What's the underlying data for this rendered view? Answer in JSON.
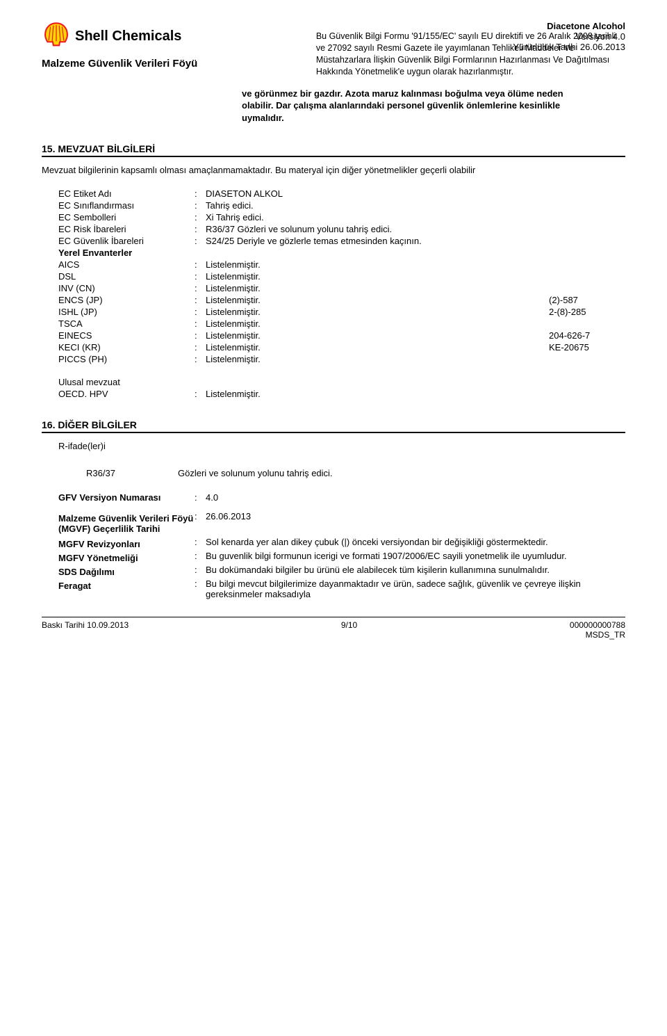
{
  "header": {
    "brand": "Shell Chemicals",
    "product_name": "Diacetone Alcohol",
    "version_label": "Versiyon 4.0",
    "effective_date": "Yürürlülük Tarihi 26.06.2013",
    "doc_title": "Malzeme Güvenlik Verileri Föyü",
    "description": "Bu Güvenlik Bilgi Formu '91/155/EC' sayılı EU direktifi ve 26 Aralık 2008 tarihli ve 27092 sayılı Resmi Gazete ile yayımlanan Tehlikeli Maddeler Ve Müstahzarlara İlişkin Güvenlik Bilgi Formlarının Hazırlanması Ve Dağıtılması Hakkında Yönetmelik'e uygun olarak hazırlanmıştır."
  },
  "bold_block": "ve görünmez bir gazdır.  Azota maruz kalınması boğulma veya ölüme neden olabilir. Dar çalışma alanlarındaki personel güvenlik önlemlerine kesinlikle uymalıdır.",
  "section15": {
    "heading": "15. MEVZUAT BİLGİLERİ",
    "intro": "Mevzuat bilgilerinin kapsamlı olması amaçlanmamaktadır. Bu materyal için diğer yönetmelikler geçerli olabilir",
    "rows": [
      {
        "key": "EC Etiket Adı",
        "val": "DIASETON ALKOL",
        "indent": true
      },
      {
        "key": "EC Sınıflandırması",
        "val": "Tahriş edici.",
        "indent": true
      },
      {
        "key": "EC Sembolleri",
        "val": "Xi Tahriş edici.",
        "indent": true
      },
      {
        "key": "EC Risk İbareleri",
        "val": "R36/37 Gözleri ve solunum yolunu tahriş edici.",
        "indent": true
      },
      {
        "key": "EC Güvenlik İbareleri",
        "val": "S24/25 Deriyle ve gözlerle temas etmesinden kaçının.",
        "indent": true
      }
    ],
    "subheading": "Yerel Envanterler",
    "inventory": [
      {
        "key": "AICS",
        "val": "Listelenmiştir.",
        "extra": ""
      },
      {
        "key": "DSL",
        "val": "Listelenmiştir.",
        "extra": ""
      },
      {
        "key": "INV (CN)",
        "val": "Listelenmiştir.",
        "extra": ""
      },
      {
        "key": "ENCS (JP)",
        "val": "Listelenmiştir.",
        "extra": "(2)-587"
      },
      {
        "key": "ISHL (JP)",
        "val": "Listelenmiştir.",
        "extra": "2-(8)-285"
      },
      {
        "key": "TSCA",
        "val": "Listelenmiştir.",
        "extra": ""
      },
      {
        "key": "EINECS",
        "val": "Listelenmiştir.",
        "extra": "204-626-7"
      },
      {
        "key": "KECI (KR)",
        "val": "Listelenmiştir.",
        "extra": "KE-20675"
      },
      {
        "key": "PICCS (PH)",
        "val": "Listelenmiştir.",
        "extra": ""
      }
    ],
    "national_heading": "Ulusal mevzuat",
    "national": [
      {
        "key": "OECD. HPV",
        "val": "Listelenmiştir."
      }
    ]
  },
  "section16": {
    "heading": "16. DİĞER BİLGİLER",
    "r_label": "R-ifade(ler)i",
    "r_rows": [
      {
        "code": "R36/37",
        "text": "Gözleri ve solunum yolunu tahriş edici."
      }
    ],
    "rows": [
      {
        "key": "GFV Versiyon Numarası",
        "val": "4.0",
        "keybold": true
      },
      {
        "key": "Malzeme Güvenlik Verileri Föyü (MGVF) Geçerlilik Tarihi",
        "val": "26.06.2013",
        "keybold": true
      },
      {
        "key": "MGFV Revizyonları",
        "val": "Sol kenarda yer alan dikey çubuk (|) önceki versiyondan bir değişikliği göstermektedir.",
        "keybold": true
      },
      {
        "key": "MGFV Yönetmeliği",
        "val": "Bu guvenlik bilgi formunun icerigi ve formati 1907/2006/EC sayili yonetmelik ile uyumludur.",
        "keybold": true
      },
      {
        "key": "SDS Dağılımı",
        "val": "Bu dokümandaki bilgiler bu ürünü ele alabilecek tüm kişilerin kullanımına sunulmalıdır.",
        "keybold": true
      },
      {
        "key": "Feragat",
        "val": "Bu bilgi mevcut bilgilerimize dayanmaktadır ve ürün, sadece sağlık, güvenlik ve çevreye ilişkin gereksinmeler maksadıyla",
        "keybold": true
      }
    ]
  },
  "footer": {
    "left": "Baskı Tarihi 10.09.2013",
    "center": "9/10",
    "right_line1": "000000000788",
    "right_line2": "MSDS_TR"
  },
  "colors": {
    "text": "#000000",
    "background": "#ffffff",
    "shell_red": "#ed1c24",
    "shell_yellow": "#ffd500"
  }
}
